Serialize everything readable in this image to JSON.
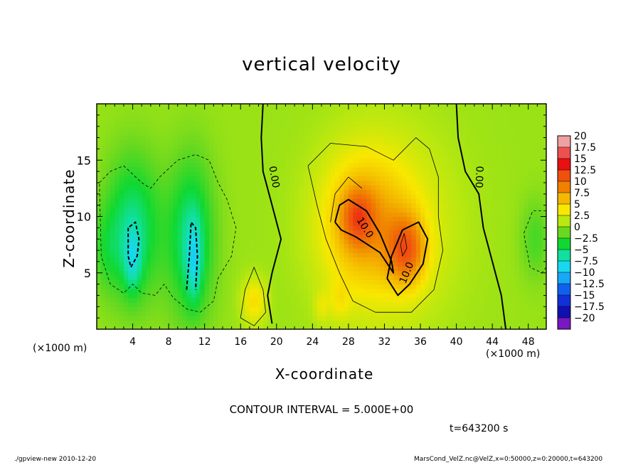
{
  "chart_data": {
    "type": "heatmap",
    "title": "vertical velocity",
    "xlabel": "X-coordinate",
    "ylabel": "Z-coordinate",
    "x_unit_left": "(×1000 m)",
    "x_unit_right": "(×1000 m)",
    "xlim": [
      0,
      50
    ],
    "ylim": [
      0,
      20
    ],
    "xticks": [
      4,
      8,
      12,
      16,
      20,
      24,
      28,
      32,
      36,
      40,
      44,
      48
    ],
    "yticks": [
      5,
      10,
      15
    ],
    "colorbar": {
      "levels": [
        20,
        17.5,
        15,
        12.5,
        10,
        7.5,
        5,
        2.5,
        0,
        -2.5,
        -5,
        -7.5,
        -10,
        -12.5,
        -15,
        -17.5,
        -20
      ],
      "colors": [
        "#f0a0a0",
        "#ee5050",
        "#e81010",
        "#f05010",
        "#f08000",
        "#f4b800",
        "#f8e800",
        "#b8e810",
        "#68d820",
        "#10d830",
        "#10e0a0",
        "#18d8f0",
        "#18a8f8",
        "#1060f0",
        "#1030d8",
        "#1010b0",
        "#7818c0"
      ]
    },
    "contour_labels": [
      "0.00",
      "0.00",
      "10.0",
      "10.0"
    ],
    "blobs": [
      {
        "x": 4.0,
        "z": 9.0,
        "sx": 2.2,
        "sz": 4.5,
        "w": -6
      },
      {
        "x": 10.5,
        "z": 8.0,
        "sx": 1.8,
        "sz": 5.0,
        "w": -6
      },
      {
        "x": 4.0,
        "z": 6.0,
        "sx": 0.7,
        "sz": 2.0,
        "w": -4
      },
      {
        "x": 10.8,
        "z": 6.0,
        "sx": 0.6,
        "sz": 2.5,
        "w": -4
      },
      {
        "x": 1.0,
        "z": 7.0,
        "sx": 1.2,
        "sz": 2.5,
        "w": -2
      },
      {
        "x": 48.8,
        "z": 8.0,
        "sx": 1.2,
        "sz": 2.5,
        "w": -2.5
      },
      {
        "x": 29.5,
        "z": 9.5,
        "sx": 3.5,
        "sz": 4.5,
        "w": 5
      },
      {
        "x": 33.0,
        "z": 9.0,
        "sx": 5.0,
        "sz": 6.0,
        "w": 3
      },
      {
        "x": 29.0,
        "z": 10.0,
        "sx": 1.3,
        "sz": 1.8,
        "w": 5
      },
      {
        "x": 34.5,
        "z": 7.0,
        "sx": 1.5,
        "sz": 2.2,
        "w": 7
      },
      {
        "x": 17.5,
        "z": 2.5,
        "sx": 1.0,
        "sz": 1.5,
        "w": 4
      },
      {
        "x": 25.0,
        "z": 2.0,
        "sx": 0.6,
        "sz": 1.0,
        "w": 2
      },
      {
        "x": 27.0,
        "z": 2.5,
        "sx": 0.8,
        "sz": 1.2,
        "w": 2
      }
    ],
    "contours": {
      "thick_solid": [
        [
          [
            19.5,
            0.5
          ],
          [
            19.0,
            3
          ],
          [
            19.5,
            5
          ],
          [
            20.5,
            8
          ],
          [
            19.5,
            11
          ],
          [
            18.5,
            14
          ],
          [
            18.3,
            17
          ],
          [
            18.5,
            20
          ]
        ],
        [
          [
            40.0,
            20
          ],
          [
            40.2,
            17
          ],
          [
            41.0,
            14
          ],
          [
            42.5,
            12
          ],
          [
            43.0,
            9
          ],
          [
            44.0,
            6
          ],
          [
            45.0,
            3
          ],
          [
            45.5,
            0
          ]
        ],
        [
          [
            26.5,
            9.5
          ],
          [
            27.0,
            11
          ],
          [
            28.0,
            11.5
          ],
          [
            30.0,
            10.5
          ],
          [
            31.5,
            8.5
          ],
          [
            32.8,
            6.0
          ],
          [
            33.0,
            5.0
          ],
          [
            31.5,
            6.8
          ],
          [
            28.8,
            8.2
          ],
          [
            27.2,
            8.8
          ],
          [
            26.5,
            9.5
          ]
        ],
        [
          [
            32.3,
            4.5
          ],
          [
            32.8,
            6.5
          ],
          [
            34.0,
            8.8
          ],
          [
            35.8,
            9.5
          ],
          [
            36.8,
            8.0
          ],
          [
            36.3,
            5.8
          ],
          [
            34.8,
            4.0
          ],
          [
            33.5,
            3.0
          ],
          [
            32.3,
            4.5
          ]
        ]
      ],
      "thin_solid": [
        [
          [
            23.5,
            14.5
          ],
          [
            26.0,
            16.5
          ],
          [
            30.0,
            16.2
          ],
          [
            33.0,
            15.0
          ],
          [
            35.5,
            17.0
          ],
          [
            37.0,
            16.0
          ],
          [
            38.0,
            13.5
          ],
          [
            38.0,
            10.0
          ],
          [
            38.5,
            7.0
          ],
          [
            37.5,
            3.5
          ],
          [
            35.0,
            1.5
          ],
          [
            31.0,
            1.5
          ],
          [
            28.5,
            2.5
          ],
          [
            27.0,
            5.0
          ],
          [
            25.5,
            8.0
          ],
          [
            24.5,
            11.0
          ],
          [
            23.5,
            14.5
          ]
        ],
        [
          [
            16.0,
            1.0
          ],
          [
            16.5,
            3.5
          ],
          [
            17.5,
            5.5
          ],
          [
            18.5,
            3.5
          ],
          [
            18.8,
            1.5
          ],
          [
            17.5,
            0.3
          ],
          [
            16.0,
            1.0
          ]
        ],
        [
          [
            29.5,
            12.5
          ],
          [
            28.0,
            13.5
          ],
          [
            26.5,
            12.0
          ],
          [
            26.0,
            9.5
          ]
        ],
        [
          [
            33.8,
            7.5
          ],
          [
            34.2,
            8.5
          ],
          [
            34.5,
            7.2
          ],
          [
            34.0,
            6.5
          ],
          [
            33.8,
            7.5
          ]
        ]
      ],
      "thin_dashed": [
        [
          [
            0.3,
            13.0
          ],
          [
            1.5,
            14.0
          ],
          [
            3.0,
            14.5
          ],
          [
            5.0,
            13.0
          ],
          [
            6.0,
            12.5
          ],
          [
            7.0,
            13.5
          ],
          [
            9.0,
            15.0
          ],
          [
            11.0,
            15.5
          ],
          [
            12.5,
            15.0
          ],
          [
            13.5,
            13.0
          ],
          [
            14.5,
            11.5
          ],
          [
            15.5,
            9.0
          ],
          [
            15.0,
            6.5
          ],
          [
            13.5,
            4.5
          ],
          [
            13.0,
            2.5
          ],
          [
            11.5,
            1.5
          ],
          [
            10.0,
            1.8
          ],
          [
            8.5,
            2.8
          ],
          [
            7.5,
            4.0
          ],
          [
            6.5,
            3.0
          ],
          [
            5.0,
            3.2
          ],
          [
            4.0,
            4.0
          ],
          [
            3.0,
            3.2
          ],
          [
            1.5,
            4.0
          ],
          [
            0.5,
            6.5
          ],
          [
            0.3,
            13.0
          ]
        ],
        [
          [
            50.0,
            10.5
          ],
          [
            48.5,
            10.5
          ],
          [
            47.5,
            8.5
          ],
          [
            48.2,
            5.5
          ],
          [
            49.5,
            5.0
          ],
          [
            50.0,
            5.5
          ]
        ]
      ],
      "thick_dashed": [
        [
          [
            3.5,
            9.0
          ],
          [
            3.5,
            6.5
          ],
          [
            3.8,
            5.5
          ],
          [
            4.5,
            6.5
          ],
          [
            4.7,
            8.0
          ],
          [
            4.3,
            9.5
          ],
          [
            3.5,
            9.0
          ]
        ],
        [
          [
            10.0,
            3.5
          ],
          [
            10.3,
            6.5
          ],
          [
            10.5,
            9.5
          ],
          [
            11.0,
            9.0
          ],
          [
            11.2,
            6.5
          ],
          [
            11.0,
            3.5
          ]
        ]
      ]
    }
  },
  "texts": {
    "contour_interval": "CONTOUR INTERVAL = 5.000E+00",
    "time": "t=643200 s",
    "footer_left": "./gpview-new  2010-12-20",
    "footer_right": "MarsCond_VelZ.nc@VelZ,x=0:50000,z=0:20000,t=643200"
  }
}
